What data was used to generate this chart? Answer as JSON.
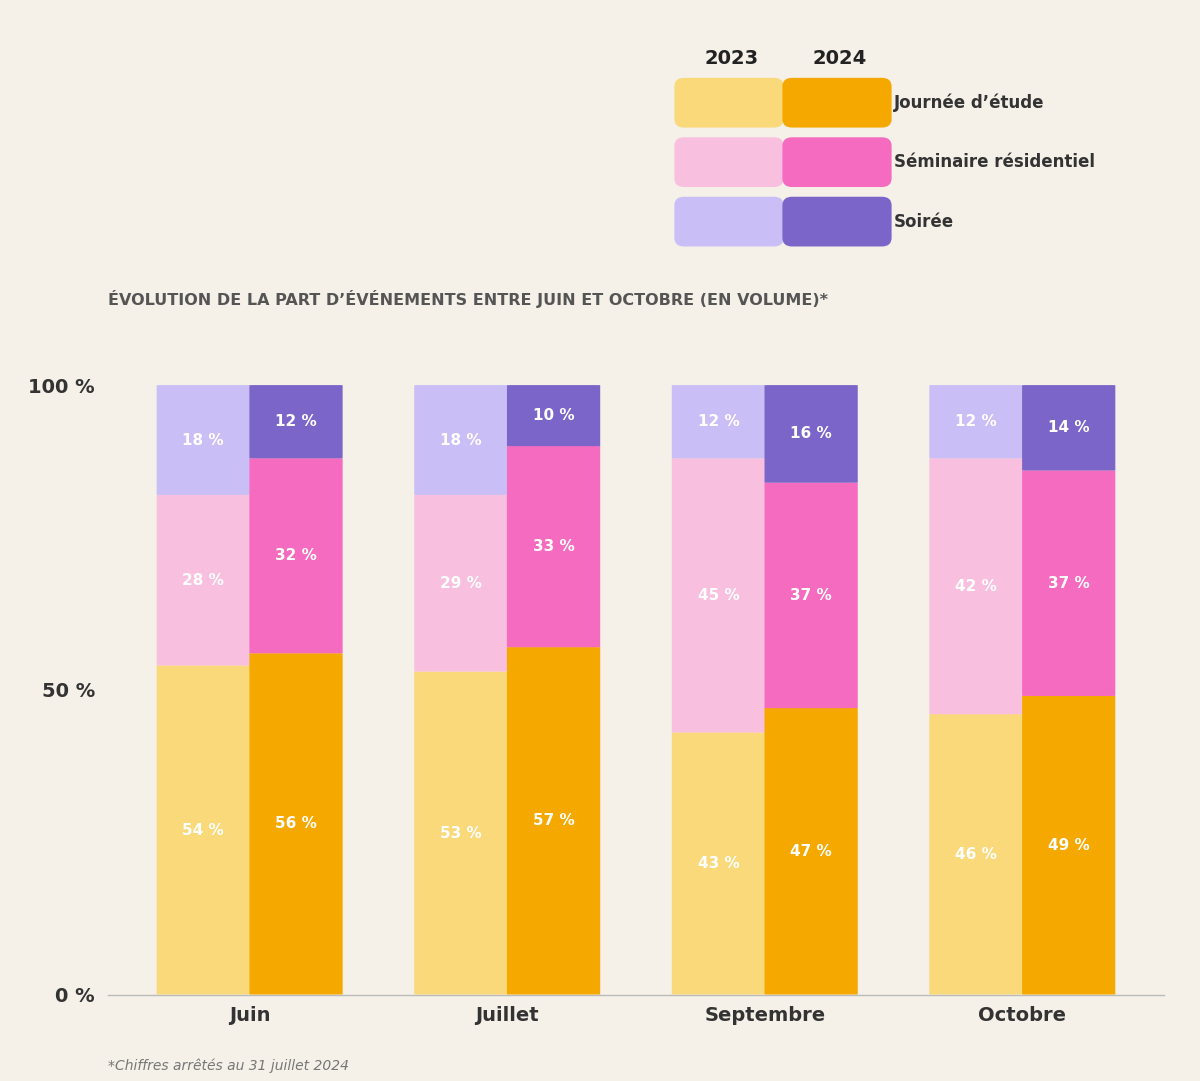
{
  "background_color": "#f5f0e8",
  "title": "ÉVOLUTION DE LA PART D’ÉVÉNEMENTS ENTRE JUIN ET OCTOBRE (EN VOLUME)*",
  "footnote": "*Chiffres arrêtés au 31 juillet 2024",
  "categories": [
    "Juin",
    "Juillet",
    "Septembre",
    "Octobre"
  ],
  "series": {
    "journee_2023": [
      54,
      53,
      43,
      46
    ],
    "journee_2024": [
      56,
      57,
      47,
      49
    ],
    "seminaire_2023": [
      28,
      29,
      45,
      42
    ],
    "seminaire_2024": [
      32,
      33,
      37,
      37
    ],
    "soiree_2023": [
      18,
      18,
      12,
      12
    ],
    "soiree_2024": [
      12,
      10,
      16,
      14
    ]
  },
  "colors": {
    "journee_2023": "#f9d97a",
    "journee_2024": "#f5a800",
    "seminaire_2023": "#f8c0de",
    "seminaire_2024": "#f56bbf",
    "soiree_2023": "#c9bef5",
    "soiree_2024": "#7b65c8"
  },
  "legend": {
    "year_2023": "2023",
    "year_2024": "2024",
    "journee": "Journée d’étude",
    "seminaire": "Séminaire résidentiel",
    "soiree": "Soirée"
  },
  "bar_width": 0.32,
  "bar_gap": 0.04,
  "group_positions": [
    1,
    2,
    3,
    4
  ],
  "ylim": [
    0,
    110
  ],
  "yticks": [
    0,
    50,
    100
  ],
  "ytick_labels": [
    "0 %",
    "50 %",
    "100 %"
  ],
  "title_fontsize": 11.5,
  "label_fontsize": 11,
  "tick_fontsize": 14,
  "cat_fontsize": 14,
  "footnote_fontsize": 10,
  "text_color_2023": "white",
  "text_color_2024": "white"
}
